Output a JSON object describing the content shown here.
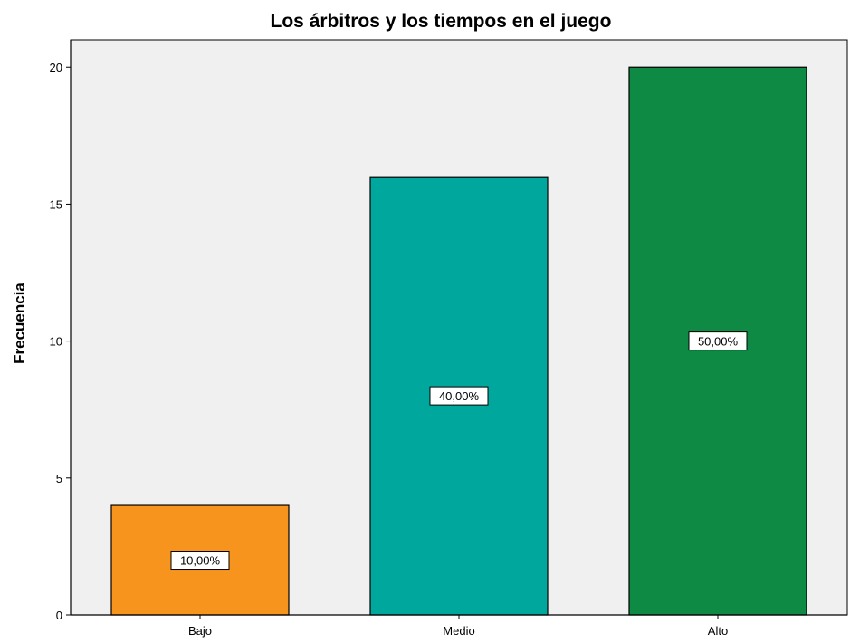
{
  "chart_data": {
    "type": "bar",
    "title": "Los árbitros y los tiempos en el juego",
    "xlabel": "",
    "ylabel": "Frecuencia",
    "categories": [
      "Bajo",
      "Medio",
      "Alto"
    ],
    "values": [
      4,
      16,
      20
    ],
    "data_labels": [
      "10,00%",
      "40,00%",
      "50,00%"
    ],
    "colors": [
      "#f7941d",
      "#00a79d",
      "#0e8a44"
    ],
    "ylim": [
      0,
      21
    ],
    "yticks": [
      0,
      5,
      10,
      15,
      20
    ],
    "grid": false,
    "legend": "none",
    "plot_background": "#f0f0f0"
  }
}
